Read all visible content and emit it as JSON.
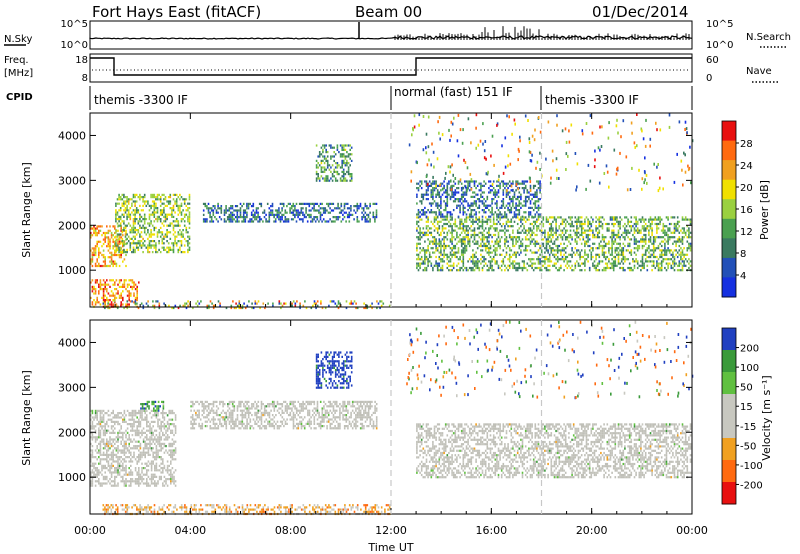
{
  "header": {
    "radar": "Fort Hays East (fitACF)",
    "beam": "Beam 00",
    "date": "01/Dec/2014"
  },
  "nsky_panel": {
    "left_label": "N.Sky",
    "left_ticks": [
      "10^5",
      "10^0"
    ],
    "right_label": "N.Search",
    "right_ticks": [
      "10^5",
      "10^0"
    ]
  },
  "freq_panel": {
    "left_label_1": "Freq.",
    "left_label_2": "[MHz]",
    "left_ticks": [
      "18",
      "8"
    ],
    "right_label": "Nave",
    "right_ticks": [
      "60",
      "0"
    ]
  },
  "cpid_panel": {
    "label": "CPID",
    "segments": [
      {
        "label": "themis -3300 IF",
        "start_hour": 0
      },
      {
        "label": "normal (fast) 151 IF",
        "start_hour": 12
      },
      {
        "label": "themis -3300 IF",
        "start_hour": 18
      }
    ]
  },
  "x_axis": {
    "label": "Time UT",
    "ticks": [
      "00:00",
      "04:00",
      "08:00",
      "12:00",
      "16:00",
      "20:00",
      "00:00"
    ],
    "range_hours": [
      0,
      24
    ]
  },
  "power_panel": {
    "ylabel": "Slant Range [km]",
    "yticks": [
      "4000",
      "3000",
      "2000",
      "1000"
    ],
    "colorbar_label": "Power [dB]",
    "colorbar_ticks": [
      "28",
      "24",
      "20",
      "16",
      "12",
      "8",
      "4"
    ]
  },
  "velocity_panel": {
    "ylabel": "Slant Range [km]",
    "yticks": [
      "4000",
      "3000",
      "2000",
      "1000"
    ],
    "colorbar_label": "Velocity [m s⁻¹]",
    "colorbar_ticks": [
      "200",
      "100",
      "50",
      "15",
      "-15",
      "-50",
      "-100",
      "-200"
    ]
  },
  "colors": {
    "power_scale": [
      "#1530e0",
      "#2250b8",
      "#3a7a60",
      "#4aa050",
      "#9ad040",
      "#f0e000",
      "#f0a020",
      "#ff6a10",
      "#e81010"
    ],
    "velocity_scale": [
      "#e81010",
      "#ff6a10",
      "#f0a020",
      "#c8c8c0",
      "#c8c8c0",
      "#60c040",
      "#3a9a3a",
      "#2040c0"
    ],
    "ground_scatter": "#c0c0b8",
    "divider": "#c8c8c8"
  },
  "chart_data": {
    "type": "heatmap",
    "x_unit": "hours UT",
    "y_unit": "slant range km",
    "xlim": [
      0,
      24
    ],
    "ylim": [
      180,
      4500
    ],
    "power_db": [
      {
        "t": [
          0.0,
          1.5
        ],
        "r": [
          1100,
          2000
        ],
        "value": 22
      },
      {
        "t": [
          1.0,
          4.0
        ],
        "r": [
          1400,
          2700
        ],
        "value": 14
      },
      {
        "t": [
          0.0,
          2.0
        ],
        "r": [
          200,
          800
        ],
        "value": 24
      },
      {
        "t": [
          4.5,
          11.5
        ],
        "r": [
          2100,
          2500
        ],
        "value": 6
      },
      {
        "t": [
          9.0,
          10.5
        ],
        "r": [
          3000,
          3800
        ],
        "value": 10
      },
      {
        "t": [
          13.0,
          24.0
        ],
        "r": [
          1000,
          2200
        ],
        "value": 12
      },
      {
        "t": [
          13.0,
          18.0
        ],
        "r": [
          2200,
          3000
        ],
        "value": 6
      }
    ],
    "velocity_ms": [
      {
        "t": [
          0.0,
          3.5
        ],
        "r": [
          800,
          2500
        ],
        "value": 0,
        "ground_scatter": true
      },
      {
        "t": [
          4.0,
          11.5
        ],
        "r": [
          2100,
          2700
        ],
        "value": 0,
        "ground_scatter": true
      },
      {
        "t": [
          13.0,
          24.0
        ],
        "r": [
          1000,
          2200
        ],
        "value": 0,
        "ground_scatter": true
      },
      {
        "t": [
          2.0,
          3.0
        ],
        "r": [
          2500,
          2700
        ],
        "value": 60
      },
      {
        "t": [
          9.0,
          10.5
        ],
        "r": [
          3000,
          3800
        ],
        "value": 150
      },
      {
        "t": [
          0.5,
          12.0
        ],
        "r": [
          200,
          400
        ],
        "value": -60
      }
    ]
  }
}
